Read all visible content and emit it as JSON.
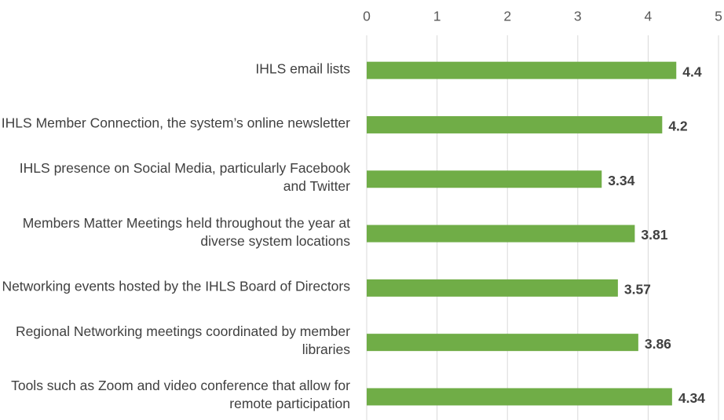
{
  "chart_data": {
    "type": "hbar",
    "categories": [
      "IHLS email lists",
      "IHLS Member Connection, the system’s online newsletter",
      "IHLS presence on Social Media, particularly Facebook and Twitter",
      "Members Matter Meetings held throughout the year at diverse system locations",
      "Networking events hosted by the IHLS Board of Directors",
      "Regional Networking meetings coordinated by member libraries",
      "Tools such as Zoom and video conference that allow for remote participation"
    ],
    "values": [
      4.4,
      4.2,
      3.34,
      3.81,
      3.57,
      3.86,
      4.34
    ],
    "color": "#70ad47",
    "xlim": [
      0,
      5
    ],
    "xticks": [
      0,
      1,
      2,
      3,
      4,
      5
    ],
    "grid": true
  }
}
